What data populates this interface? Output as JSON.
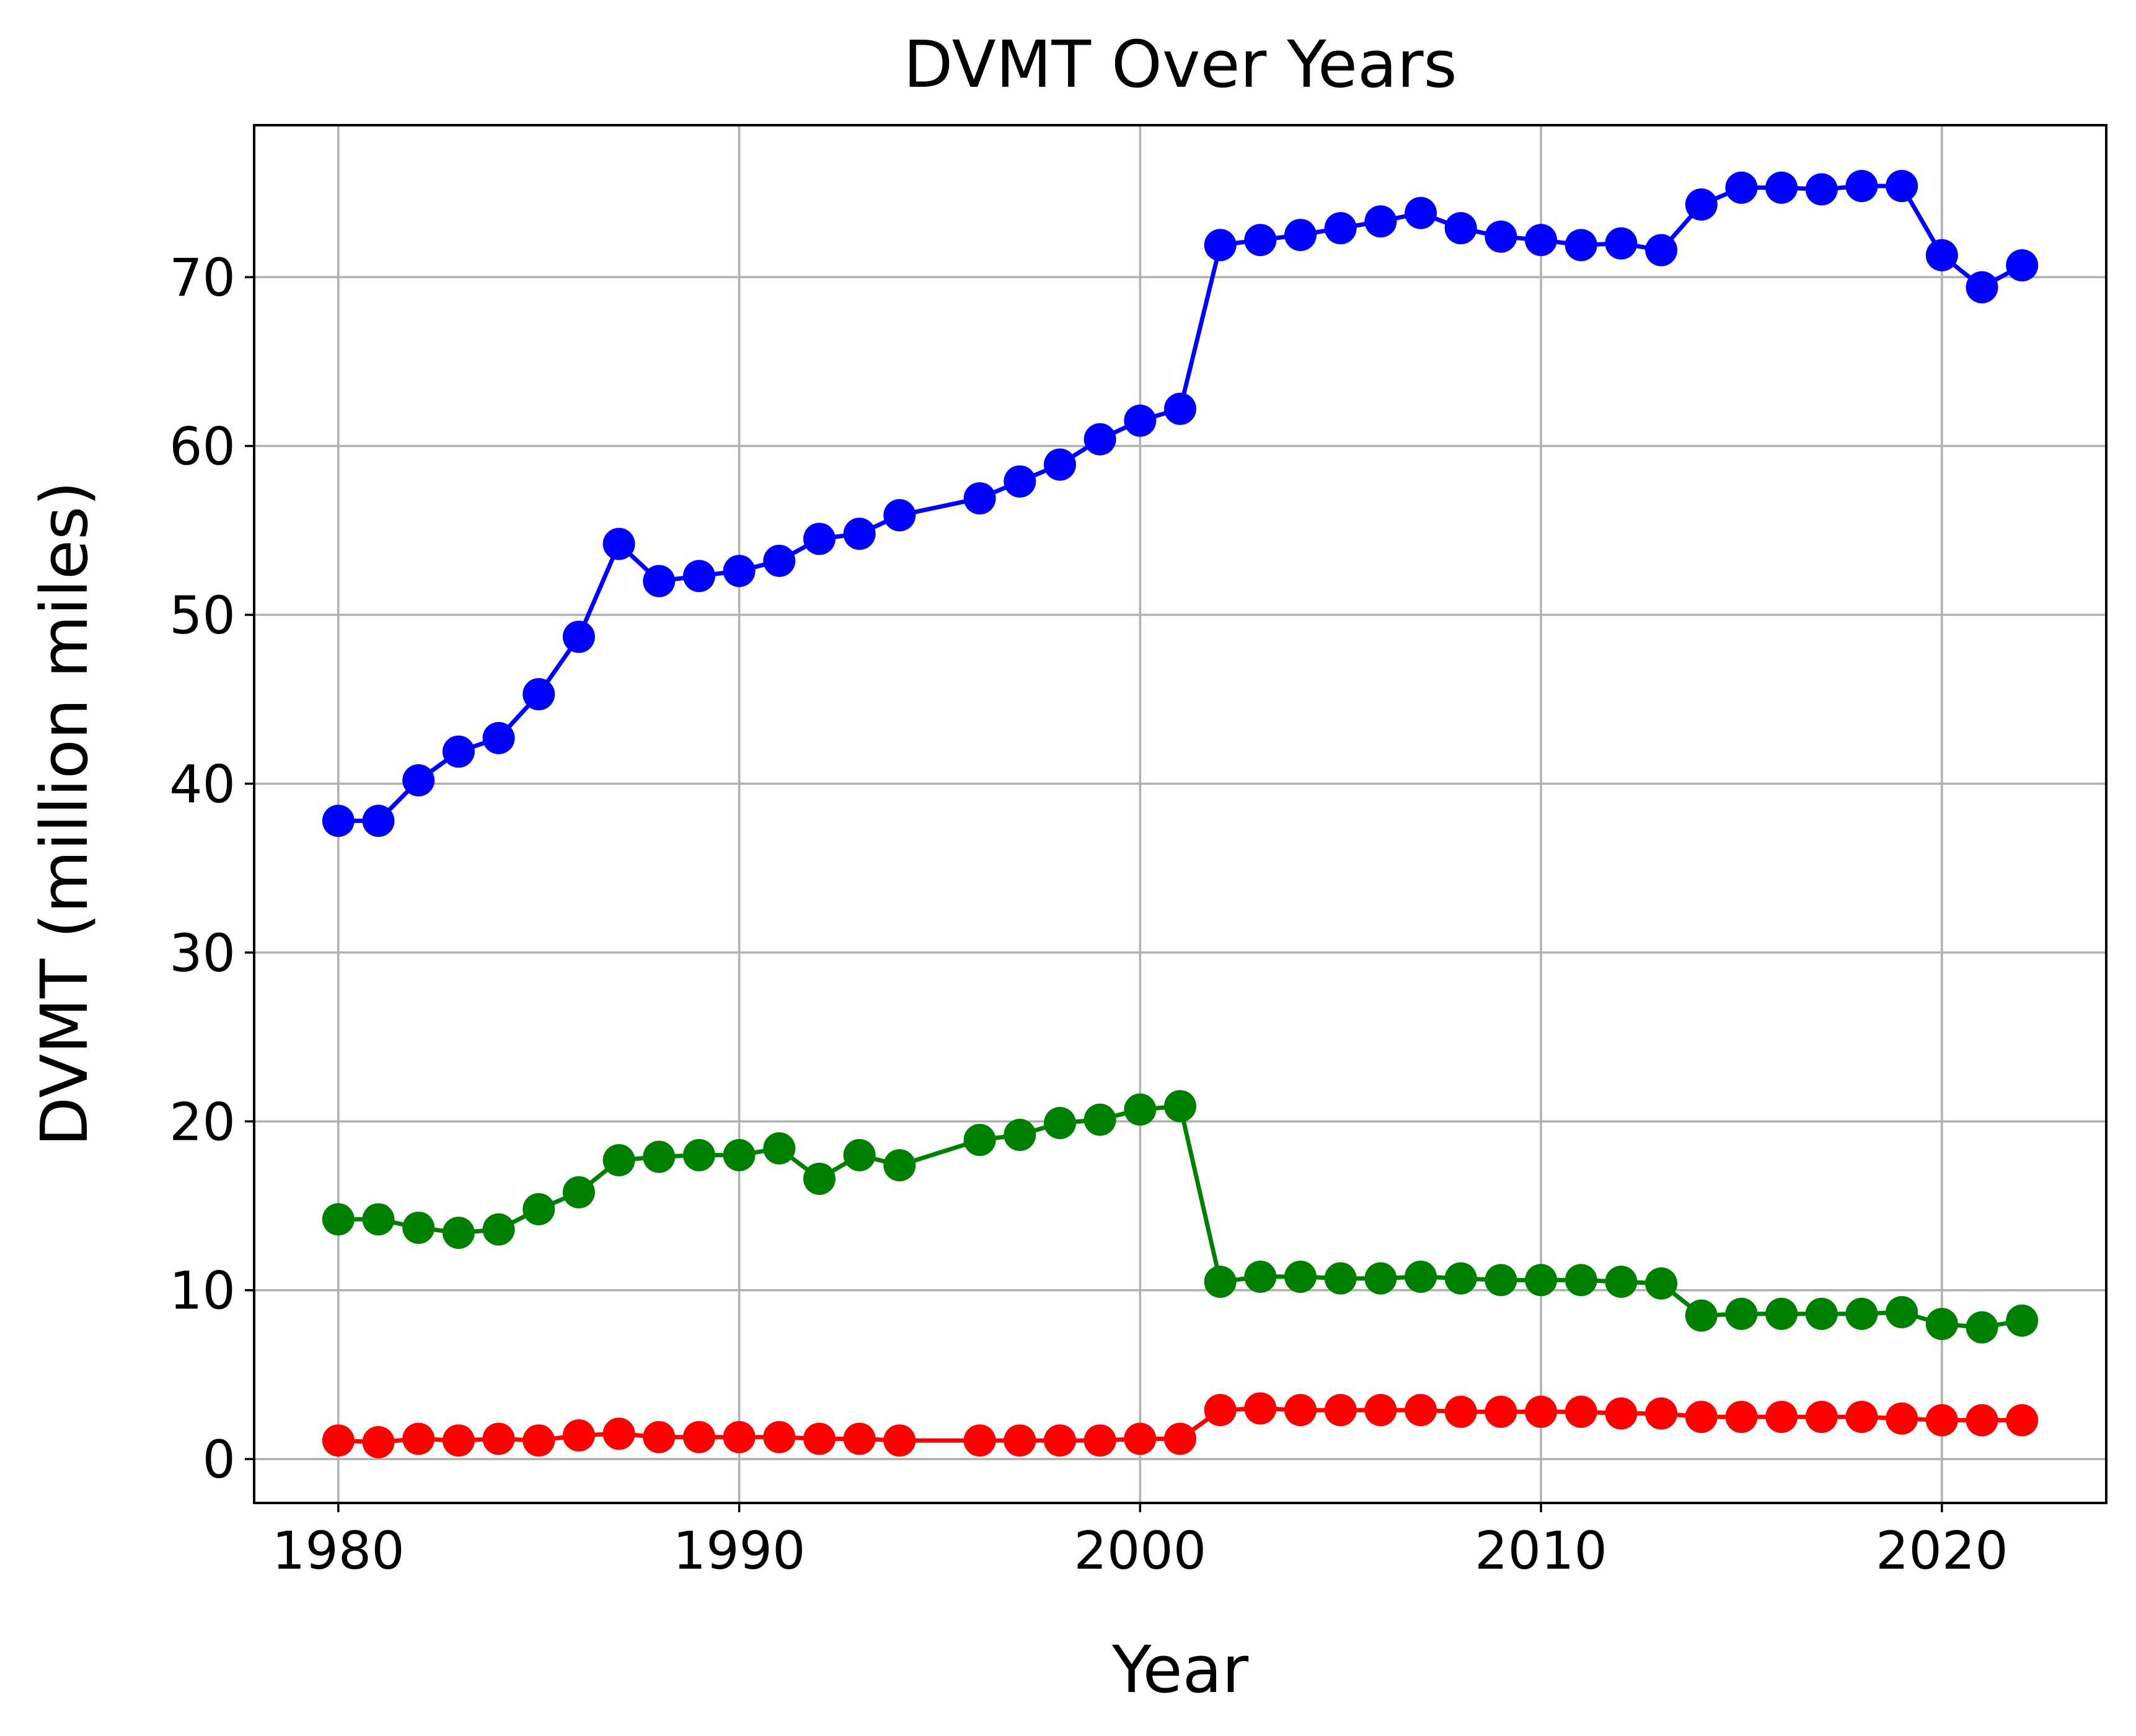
{
  "chart_data": {
    "type": "line",
    "title": "DVMT Over Years",
    "xlabel": "Year",
    "ylabel": "DVMT (million miles)",
    "xlim": [
      1977.9,
      2024.1
    ],
    "ylim": [
      -2.6,
      79.0
    ],
    "xticks": [
      1980,
      1990,
      2000,
      2010,
      2020
    ],
    "yticks": [
      0,
      10,
      20,
      30,
      40,
      50,
      60,
      70
    ],
    "grid": true,
    "legend": "none",
    "markers": "circle",
    "series": [
      {
        "color": "#0000ff",
        "x": [
          1980,
          1981,
          1982,
          1983,
          1984,
          1985,
          1986,
          1987,
          1988,
          1989,
          1990,
          1991,
          1992,
          1993,
          1994,
          1996,
          1997,
          1998,
          1999,
          2000,
          2001,
          2002,
          2003,
          2004,
          2005,
          2006,
          2007,
          2008,
          2009,
          2010,
          2011,
          2012,
          2013,
          2014,
          2015,
          2016,
          2017,
          2018,
          2019,
          2020,
          2021,
          2022
        ],
        "y": [
          37.8,
          37.8,
          40.2,
          41.9,
          42.7,
          45.3,
          48.7,
          54.2,
          52.0,
          52.3,
          52.6,
          53.2,
          54.5,
          54.8,
          55.9,
          56.9,
          57.9,
          58.9,
          60.4,
          61.5,
          62.2,
          71.9,
          72.2,
          72.5,
          72.9,
          73.3,
          73.8,
          72.9,
          72.4,
          72.2,
          71.9,
          72.0,
          71.6,
          74.3,
          75.3,
          75.3,
          75.2,
          75.4,
          75.4,
          71.3,
          69.4,
          70.7
        ]
      },
      {
        "color": "#008000",
        "x": [
          1980,
          1981,
          1982,
          1983,
          1984,
          1985,
          1986,
          1987,
          1988,
          1989,
          1990,
          1991,
          1992,
          1993,
          1994,
          1996,
          1997,
          1998,
          1999,
          2000,
          2001,
          2002,
          2003,
          2004,
          2005,
          2006,
          2007,
          2008,
          2009,
          2010,
          2011,
          2012,
          2013,
          2014,
          2015,
          2016,
          2017,
          2018,
          2019,
          2020,
          2021,
          2022
        ],
        "y": [
          14.2,
          14.2,
          13.7,
          13.4,
          13.6,
          14.8,
          15.8,
          17.7,
          17.9,
          18.0,
          18.0,
          18.4,
          16.6,
          18.0,
          17.4,
          18.9,
          19.2,
          19.9,
          20.1,
          20.7,
          20.9,
          10.5,
          10.8,
          10.8,
          10.7,
          10.7,
          10.8,
          10.7,
          10.6,
          10.6,
          10.6,
          10.5,
          10.4,
          8.5,
          8.6,
          8.6,
          8.6,
          8.6,
          8.7,
          8.0,
          7.8,
          8.2
        ]
      },
      {
        "color": "#ff0000",
        "x": [
          1980,
          1981,
          1982,
          1983,
          1984,
          1985,
          1986,
          1987,
          1988,
          1989,
          1990,
          1991,
          1992,
          1993,
          1994,
          1996,
          1997,
          1998,
          1999,
          2000,
          2001,
          2002,
          2003,
          2004,
          2005,
          2006,
          2007,
          2008,
          2009,
          2010,
          2011,
          2012,
          2013,
          2014,
          2015,
          2016,
          2017,
          2018,
          2019,
          2020,
          2021,
          2022
        ],
        "y": [
          1.1,
          1.0,
          1.2,
          1.1,
          1.2,
          1.1,
          1.4,
          1.5,
          1.3,
          1.3,
          1.3,
          1.3,
          1.2,
          1.2,
          1.1,
          1.1,
          1.1,
          1.1,
          1.1,
          1.2,
          1.2,
          2.9,
          3.0,
          2.9,
          2.9,
          2.9,
          2.9,
          2.8,
          2.8,
          2.8,
          2.8,
          2.7,
          2.7,
          2.5,
          2.5,
          2.5,
          2.5,
          2.5,
          2.4,
          2.3,
          2.3,
          2.3
        ]
      }
    ]
  }
}
